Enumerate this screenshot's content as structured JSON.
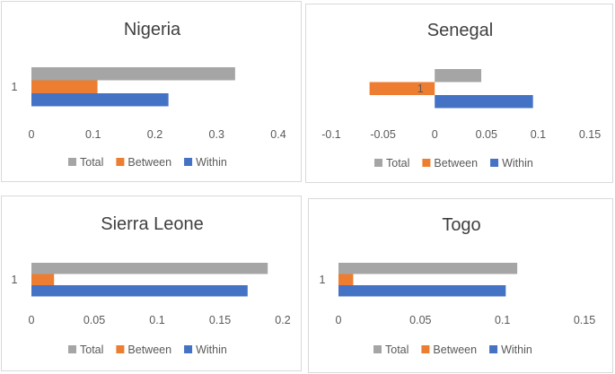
{
  "chart_data": [
    {
      "type": "bar",
      "orientation": "horizontal",
      "title": "Nigeria",
      "categories": [
        "1"
      ],
      "series": [
        {
          "name": "Total",
          "color": "#a5a5a5",
          "values": [
            0.33
          ]
        },
        {
          "name": "Between",
          "color": "#ed7d31",
          "values": [
            0.107
          ]
        },
        {
          "name": "Within",
          "color": "#4472c4",
          "values": [
            0.222
          ]
        }
      ],
      "xlim": [
        0,
        0.4
      ],
      "ticks": [
        "0",
        "0.1",
        "0.2",
        "0.3",
        "0.4"
      ],
      "legend": "bottom",
      "grid": false
    },
    {
      "type": "bar",
      "orientation": "horizontal",
      "title": "Senegal",
      "categories": [
        "1"
      ],
      "series": [
        {
          "name": "Total",
          "color": "#a5a5a5",
          "values": [
            0.045
          ]
        },
        {
          "name": "Between",
          "color": "#ed7d31",
          "values": [
            -0.063
          ]
        },
        {
          "name": "Within",
          "color": "#4472c4",
          "values": [
            0.095
          ]
        }
      ],
      "xlim": [
        -0.1,
        0.15
      ],
      "ticks": [
        "-0.1",
        "-0.05",
        "0",
        "0.05",
        "0.1",
        "0.15"
      ],
      "legend": "bottom",
      "grid": false
    },
    {
      "type": "bar",
      "orientation": "horizontal",
      "title": "Sierra Leone",
      "categories": [
        "1"
      ],
      "series": [
        {
          "name": "Total",
          "color": "#a5a5a5",
          "values": [
            0.188
          ]
        },
        {
          "name": "Between",
          "color": "#ed7d31",
          "values": [
            0.018
          ]
        },
        {
          "name": "Within",
          "color": "#4472c4",
          "values": [
            0.172
          ]
        }
      ],
      "xlim": [
        0,
        0.2
      ],
      "ticks": [
        "0",
        "0.05",
        "0.1",
        "0.15",
        "0.2"
      ],
      "legend": "bottom",
      "grid": false
    },
    {
      "type": "bar",
      "orientation": "horizontal",
      "title": "Togo",
      "categories": [
        "1"
      ],
      "series": [
        {
          "name": "Total",
          "color": "#a5a5a5",
          "values": [
            0.109
          ]
        },
        {
          "name": "Between",
          "color": "#ed7d31",
          "values": [
            0.009
          ]
        },
        {
          "name": "Within",
          "color": "#4472c4",
          "values": [
            0.102
          ]
        }
      ],
      "xlim": [
        0,
        0.15
      ],
      "ticks": [
        "0",
        "0.05",
        "0.1",
        "0.15"
      ],
      "legend": "bottom",
      "grid": false
    }
  ]
}
